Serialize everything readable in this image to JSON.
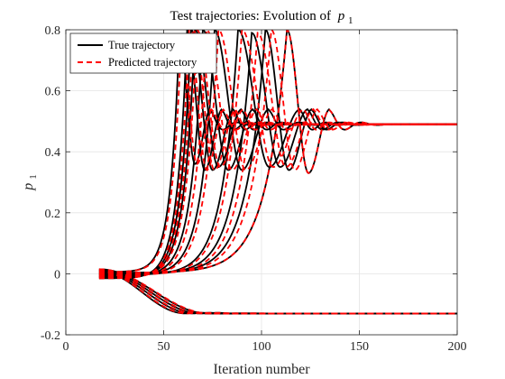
{
  "chart_data": {
    "type": "line",
    "title": "Test trajectories: Evolution of",
    "title_math": "p",
    "title_math_sub": "1",
    "xlabel": "Iteration number",
    "ylabel": "p",
    "ylabel_sub": "1",
    "xlim": [
      0,
      200
    ],
    "ylim": [
      -0.2,
      0.8
    ],
    "xticks": [
      0,
      50,
      100,
      150,
      200
    ],
    "yticks": [
      -0.2,
      0,
      0.2,
      0.4,
      0.6,
      0.8
    ],
    "xtick_labels": [
      "0",
      "50",
      "100",
      "150",
      "200"
    ],
    "ytick_labels": [
      "-0.2",
      "0",
      "0.2",
      "0.4",
      "0.6",
      "0.8"
    ],
    "grid": true,
    "legend_position": "top-left",
    "colors": {
      "true": "#000000",
      "predicted": "#ff0000"
    },
    "series": [
      {
        "name": "True trajectory",
        "style": "solid",
        "color": "#000000"
      },
      {
        "name": "Predicted trajectory",
        "style": "dashed",
        "color": "#ff0000"
      }
    ],
    "start_x": 17,
    "start_y_range": [
      -0.015,
      0.015
    ],
    "upper_final_value": 0.49,
    "lower_final_value": -0.13,
    "lower_settle_x": 65,
    "upper_trajectories": [
      {
        "rise_x": 55,
        "peak_x": 62,
        "second_peak_x": 80,
        "peak_y": 0.8,
        "dip_y": 0.34,
        "settle_x": 100,
        "pred_offset": 1
      },
      {
        "rise_x": 57,
        "peak_x": 64,
        "second_peak_x": 86,
        "peak_y": 0.8,
        "dip_y": 0.34,
        "settle_x": 105,
        "pred_offset": 1
      },
      {
        "rise_x": 58,
        "peak_x": 66,
        "second_peak_x": 90,
        "peak_y": 0.8,
        "dip_y": 0.35,
        "settle_x": 110,
        "pred_offset": 1
      },
      {
        "rise_x": 60,
        "peak_x": 70,
        "second_peak_x": 96,
        "peak_y": 0.8,
        "dip_y": 0.34,
        "settle_x": 118,
        "pred_offset": 2
      },
      {
        "rise_x": 65,
        "peak_x": 76,
        "second_peak_x": 104,
        "peak_y": 0.8,
        "dip_y": 0.34,
        "settle_x": 128,
        "pred_offset": 2
      },
      {
        "rise_x": 75,
        "peak_x": 88,
        "second_peak_x": 120,
        "peak_y": 0.8,
        "dip_y": 0.35,
        "settle_x": 140,
        "pred_offset": 2
      },
      {
        "rise_x": 85,
        "peak_x": 95,
        "second_peak_x": 124,
        "peak_y": 0.79,
        "dip_y": 0.35,
        "settle_x": 148,
        "pred_offset": 3
      },
      {
        "rise_x": 93,
        "peak_x": 102,
        "second_peak_x": 126,
        "peak_y": 0.8,
        "dip_y": 0.34,
        "settle_x": 150,
        "pred_offset": 3
      },
      {
        "rise_x": 103,
        "peak_x": 113,
        "second_peak_x": 135,
        "peak_y": 0.8,
        "dip_y": 0.33,
        "settle_x": 160,
        "pred_offset": 0
      },
      {
        "rise_x": 50,
        "peak_x": 58,
        "second_peak_x": 74,
        "peak_y": 0.78,
        "dip_y": 0.36,
        "settle_x": 95,
        "pred_offset": 1
      }
    ],
    "lower_trajectories": [
      {
        "dip_rate": 1.0,
        "settle_x": 62
      },
      {
        "dip_rate": 0.9,
        "settle_x": 66
      },
      {
        "dip_rate": 0.8,
        "settle_x": 70
      },
      {
        "dip_rate": 0.7,
        "settle_x": 74
      }
    ]
  }
}
